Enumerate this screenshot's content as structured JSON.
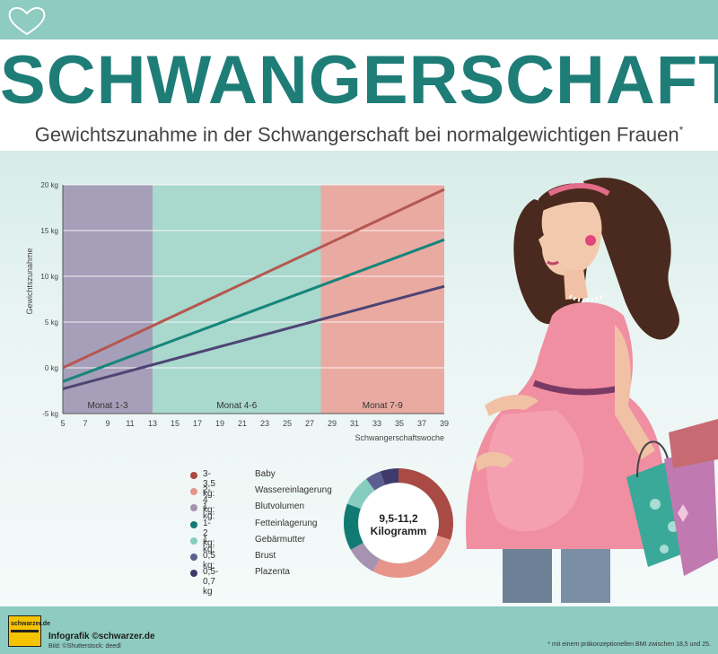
{
  "header": {
    "title": "SCHWANGERSCHAFT",
    "subtitle": "Gewichtszunahme in der Schwangerschaft bei normalgewichtigen Frauen",
    "subtitle_mark": "*"
  },
  "chart_data": {
    "type": "line",
    "ylabel": "Gewichtszunahme",
    "xlabel": "Schwangerschaftswoche",
    "x_ticks": [
      5,
      7,
      9,
      11,
      13,
      15,
      17,
      19,
      21,
      23,
      25,
      27,
      29,
      31,
      33,
      35,
      37,
      39
    ],
    "xlim": [
      5,
      39
    ],
    "y_ticks": [
      "-5 kg",
      "0 kg",
      "5 kg",
      "10 kg",
      "15 kg",
      "20 kg"
    ],
    "y_tick_values": [
      -5,
      0,
      5,
      10,
      15,
      20
    ],
    "ylim": [
      -5,
      20
    ],
    "grid": true,
    "phases": [
      {
        "label": "Monat 1-3",
        "start": 5,
        "end": 13,
        "color": "#a69fb9"
      },
      {
        "label": "Monat 4-6",
        "start": 13,
        "end": 28,
        "color": "#a9d8cd"
      },
      {
        "label": "Monat 7-9",
        "start": 28,
        "end": 39,
        "color": "#e9aaa2"
      }
    ],
    "series": [
      {
        "color": "#b5574f",
        "x": [
          5,
          39
        ],
        "y": [
          0,
          19.5
        ]
      },
      {
        "color": "#16857b",
        "x": [
          5,
          39
        ],
        "y": [
          -1.5,
          14
        ]
      },
      {
        "color": "#4d4474",
        "x": [
          5,
          39
        ],
        "y": [
          -2.3,
          8.9
        ]
      }
    ]
  },
  "composition": {
    "legend": [
      {
        "amount": "3-3,5 kg:",
        "label": "Baby",
        "color": "#a94a45"
      },
      {
        "amount": "2-4 kg:",
        "label": "Wassereinlagerung",
        "color": "#e7948b"
      },
      {
        "amount": "1 kg:",
        "label": "Blutvolumen",
        "color": "#a593b1"
      },
      {
        "amount": "1-2 kg:",
        "label": "Fetteinlagerung",
        "color": "#117a73"
      },
      {
        "amount": "1 kg:",
        "label": "Gebärmutter",
        "color": "#86cdbf"
      },
      {
        "amount": "0,5 kg:",
        "label": "Brust",
        "color": "#5a5f8f"
      },
      {
        "amount": "0,5-0,7 kg",
        "label": "Plazenta",
        "color": "#3f3a6b"
      }
    ],
    "donut_values": [
      3.25,
      3,
      1,
      1.5,
      1,
      0.5,
      0.6
    ],
    "total_line1": "9,5-11,2",
    "total_line2": "Kilogramm"
  },
  "footer": {
    "logo_text": "schwarzer.de",
    "credit": "Infografik ©schwarzer.de",
    "source": "Bild: ©Shutterstock: deedl",
    "note": "* mit einem präkonzeptionellen BMI zwischen 18,5 und 25."
  }
}
